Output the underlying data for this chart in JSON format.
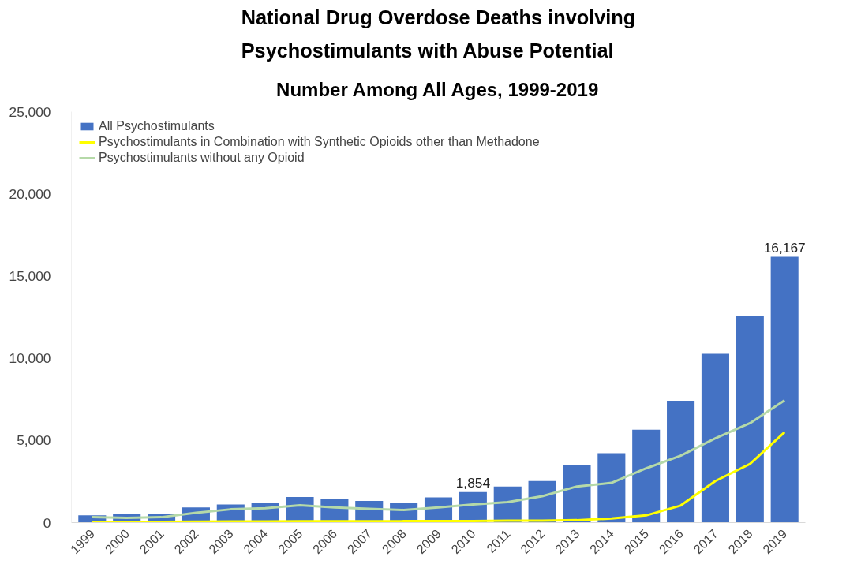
{
  "chart_data": {
    "type": "bar",
    "title": "National Drug Overdose Deaths involving\nPsychostimulants with Abuse Potential",
    "subtitle": "Number Among All Ages, 1999-2019",
    "categories": [
      "1999",
      "2000",
      "2001",
      "2002",
      "2003",
      "2004",
      "2005",
      "2006",
      "2007",
      "2008",
      "2009",
      "2010",
      "2011",
      "2012",
      "2013",
      "2014",
      "2015",
      "2016",
      "2017",
      "2018",
      "2019"
    ],
    "series": [
      {
        "name": "All Psychostimulants",
        "color": "#4472c4",
        "values": [
          440,
          500,
          500,
          920,
          1100,
          1210,
          1560,
          1430,
          1320,
          1210,
          1540,
          1854,
          2200,
          2530,
          3520,
          4220,
          5650,
          7410,
          10270,
          12580,
          16167
        ],
        "value_labels": [
          null,
          null,
          null,
          null,
          null,
          null,
          null,
          null,
          null,
          null,
          null,
          "1,854",
          null,
          null,
          null,
          null,
          null,
          null,
          null,
          null,
          "16,167"
        ]
      },
      {
        "name": "Psychostimulants in Combination with Synthetic Opioids other than Methadone",
        "type": "line",
        "color": "#ffff00",
        "values": [
          40,
          40,
          50,
          60,
          70,
          70,
          80,
          80,
          80,
          90,
          100,
          100,
          120,
          120,
          150,
          250,
          440,
          1040,
          2530,
          3570,
          5500
        ]
      },
      {
        "name": "Psychostimulants without any Opioid",
        "type": "line",
        "color": "#b5d9a8",
        "values": [
          330,
          290,
          330,
          600,
          810,
          880,
          1060,
          920,
          840,
          770,
          920,
          1100,
          1250,
          1610,
          2200,
          2420,
          3300,
          4070,
          5130,
          6050,
          7440
        ]
      }
    ],
    "ylim": [
      0,
      25000
    ],
    "yticks": [
      {
        "value": 0,
        "label": "0"
      },
      {
        "value": 5000,
        "label": "5,000"
      },
      {
        "value": 10000,
        "label": "10,000"
      },
      {
        "value": 15000,
        "label": "15,000"
      },
      {
        "value": 20000,
        "label": "20,000"
      },
      {
        "value": 25000,
        "label": "25,000"
      }
    ],
    "legend": "top left",
    "grid": false
  }
}
